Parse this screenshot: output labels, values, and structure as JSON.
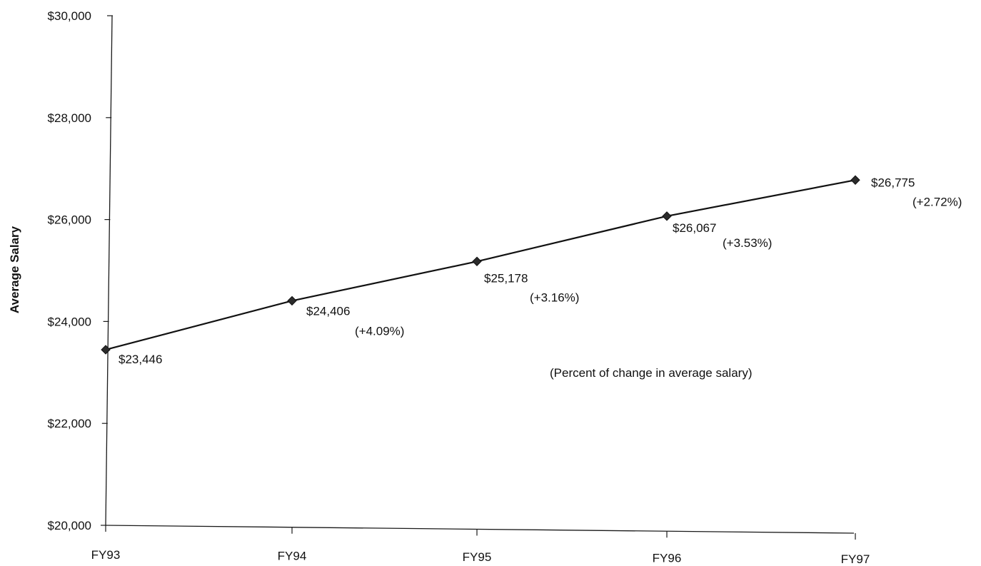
{
  "chart_data": {
    "type": "line",
    "categories": [
      "FY93",
      "FY94",
      "FY95",
      "FY96",
      "FY97"
    ],
    "series": [
      {
        "values": [
          23446,
          24406,
          25178,
          26067,
          26775
        ],
        "value_labels": [
          "$23,446",
          "$24,406",
          "$25,178",
          "$26,067",
          "$26,775"
        ],
        "percent_change_labels": [
          "",
          "(+4.09%)",
          "(+3.16%)",
          "(+3.53%)",
          "(+2.72%)"
        ]
      }
    ],
    "xlabel": "",
    "ylabel": "Average Salary",
    "ylim": [
      20000,
      30000
    ],
    "y_ticks": [
      20000,
      22000,
      24000,
      26000,
      28000,
      30000
    ],
    "y_tick_labels": [
      "$20,000",
      "$22,000",
      "$24,000",
      "$26,000",
      "$28,000",
      "$30,000"
    ],
    "annotation": "(Percent of change in average salary)",
    "grid": false,
    "colors": {
      "line": "#111111",
      "marker": "#2b2b2b",
      "text": "#111111"
    }
  }
}
